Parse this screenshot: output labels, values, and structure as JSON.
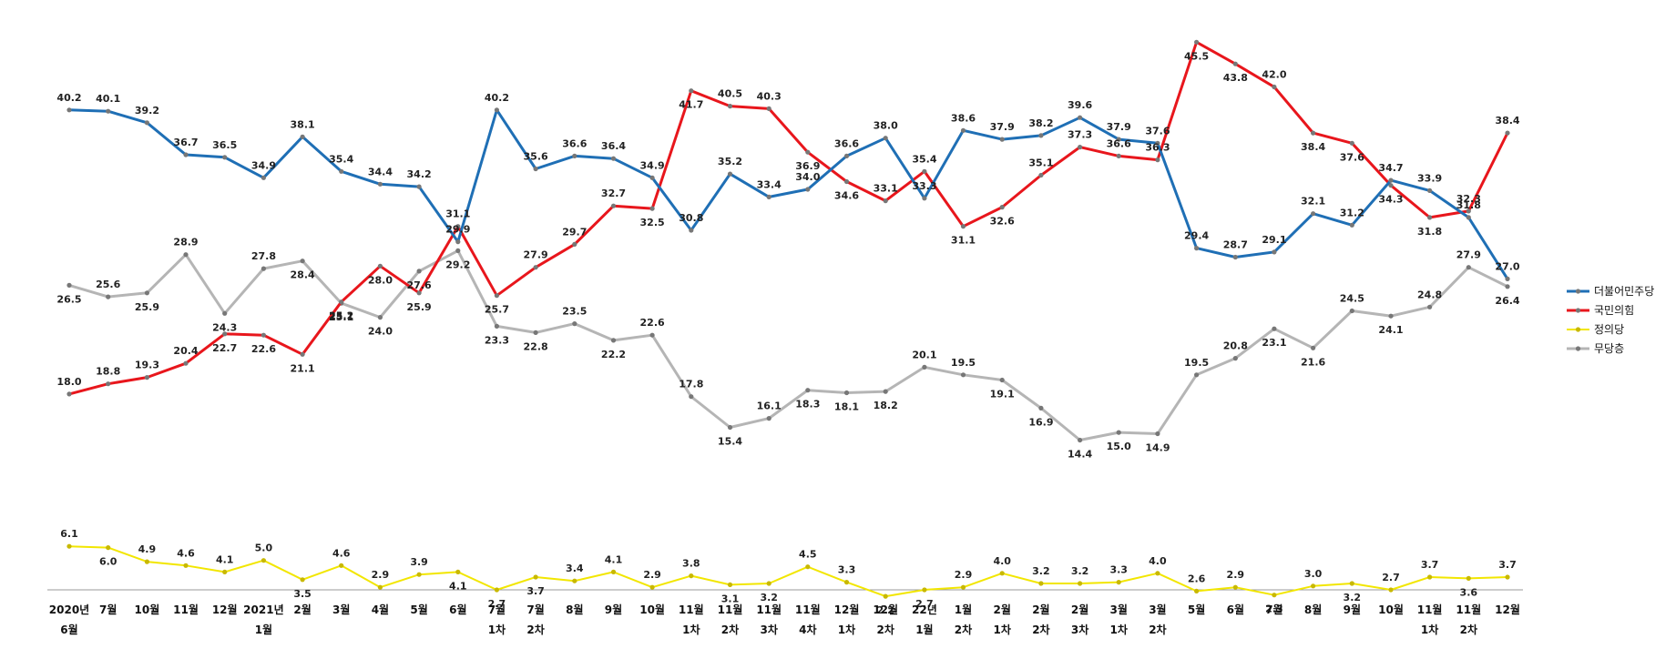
{
  "chart_data": {
    "type": "line",
    "categories": [
      [
        "2020년",
        "6월"
      ],
      [
        "7월"
      ],
      [
        "10월"
      ],
      [
        "11월"
      ],
      [
        "12월"
      ],
      [
        "2021년",
        "1월"
      ],
      [
        "2월"
      ],
      [
        "3월"
      ],
      [
        "4월"
      ],
      [
        "5월"
      ],
      [
        "6월"
      ],
      [
        "7월",
        "1차"
      ],
      [
        "7월",
        "2차"
      ],
      [
        "8월"
      ],
      [
        "9월"
      ],
      [
        "10월"
      ],
      [
        "11월",
        "1차"
      ],
      [
        "11월",
        "2차"
      ],
      [
        "11월",
        "3차"
      ],
      [
        "11월",
        "4차"
      ],
      [
        "12월",
        "1차"
      ],
      [
        "12월",
        "2차"
      ],
      [
        "22년",
        "1월"
      ],
      [
        "1월",
        "2차"
      ],
      [
        "2월",
        "1차"
      ],
      [
        "2월",
        "2차"
      ],
      [
        "2월",
        "3차"
      ],
      [
        "3월",
        "1차"
      ],
      [
        "3월",
        "2차"
      ],
      [
        "5월"
      ],
      [
        "6월"
      ],
      [
        "7월"
      ],
      [
        "8월"
      ],
      [
        "9월"
      ],
      [
        "10월"
      ],
      [
        "11월",
        "1차"
      ],
      [
        "11월",
        "2차"
      ],
      [
        "12월"
      ]
    ],
    "series": [
      {
        "name": "더불어민주당",
        "color": "#1f6fb5",
        "values": [
          40.2,
          40.1,
          39.2,
          36.7,
          36.5,
          34.9,
          38.1,
          35.4,
          34.4,
          34.2,
          29.9,
          40.2,
          35.6,
          36.6,
          36.4,
          34.9,
          30.8,
          35.2,
          33.4,
          34.0,
          36.6,
          38.0,
          33.3,
          38.6,
          37.9,
          38.2,
          39.6,
          37.9,
          37.6,
          29.4,
          28.7,
          29.1,
          32.1,
          31.2,
          34.7,
          33.9,
          31.8,
          27.0
        ]
      },
      {
        "name": "국민의힘",
        "color": "#e8161c",
        "values": [
          18.0,
          18.8,
          19.3,
          20.4,
          22.7,
          22.6,
          21.1,
          25.2,
          28.0,
          25.9,
          31.1,
          25.7,
          27.9,
          29.7,
          32.7,
          32.5,
          41.7,
          40.5,
          40.3,
          36.9,
          34.6,
          33.1,
          35.4,
          31.1,
          32.6,
          35.1,
          37.3,
          36.6,
          36.3,
          45.5,
          43.8,
          42.0,
          38.4,
          37.6,
          34.3,
          31.8,
          32.3,
          38.4
        ]
      },
      {
        "name": "정의당",
        "color": "#f2e600",
        "values": [
          6.1,
          6.0,
          4.9,
          4.6,
          4.1,
          5.0,
          3.5,
          4.6,
          2.9,
          3.9,
          4.1,
          2.7,
          3.7,
          3.4,
          4.1,
          2.9,
          3.8,
          3.1,
          3.2,
          4.5,
          3.3,
          2.2,
          2.7,
          2.9,
          4.0,
          3.2,
          3.2,
          3.3,
          4.0,
          2.6,
          2.9,
          2.3,
          3.0,
          3.2,
          2.7,
          3.7,
          3.6,
          3.7
        ]
      },
      {
        "name": "무당층",
        "color": "#b5b5b5",
        "values": [
          26.5,
          25.6,
          25.9,
          28.9,
          24.3,
          27.8,
          28.4,
          25.1,
          24.0,
          27.6,
          29.2,
          23.3,
          22.8,
          23.5,
          22.2,
          22.6,
          17.8,
          15.4,
          16.1,
          18.3,
          18.1,
          18.2,
          20.1,
          19.5,
          19.1,
          16.9,
          14.4,
          15.0,
          14.9,
          19.5,
          20.8,
          23.1,
          21.6,
          24.5,
          24.1,
          24.8,
          27.9,
          26.4
        ]
      }
    ],
    "ylim": [
      0,
      47
    ],
    "grid": false,
    "legend": "right"
  }
}
